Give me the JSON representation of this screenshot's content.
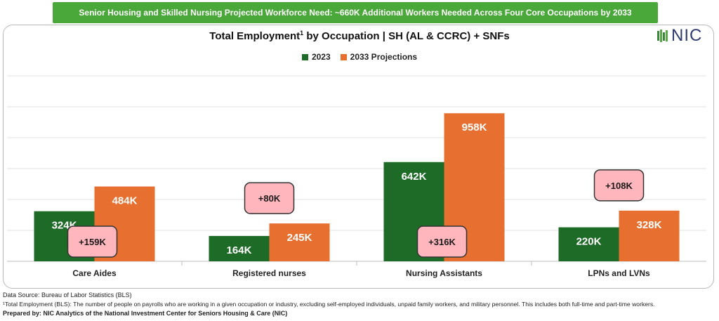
{
  "banner": "Senior Housing and Skilled Nursing Projected Workforce Need:  ~660K Additional Workers Needed Across Four Core Occupations by 2033",
  "logo_text": "NIC",
  "colors": {
    "series_2023": "#1e6b27",
    "series_2033": "#e76f30",
    "bubble_fill": "#ffb6bd",
    "bubble_border": "#333333",
    "banner": "#4aa83a"
  },
  "chart_data": {
    "type": "bar",
    "title_main": "Total Employment",
    "title_sup": "1",
    "title_rest": " by Occupation | SH (AL & CCRC) + SNFs",
    "categories": [
      "Care Aides",
      "Registered nurses",
      "Nursing Assistants",
      "LPNs and LVNs"
    ],
    "series": [
      {
        "name": "2023",
        "values": [
          324,
          164,
          642,
          220
        ],
        "labels": [
          "324K",
          "164K",
          "642K",
          "220K"
        ]
      },
      {
        "name": "2033 Projections",
        "values": [
          484,
          245,
          958,
          328
        ],
        "labels": [
          "484K",
          "245K",
          "958K",
          "328K"
        ]
      }
    ],
    "annotations": [
      "+159K",
      "+80K",
      "+316K",
      "+108K"
    ],
    "ylim": [
      0,
      1200
    ],
    "grid": true,
    "legend": "top-center"
  },
  "footer": {
    "source": "Data Source: Bureau of Labor Statistics (BLS)",
    "note": "¹Total Employment (BLS): The number of people on payrolls who are working in a given occupation or industry, excluding self-employed individuals, unpaid family workers, and military personnel. This includes both full-time and part-time workers.",
    "prepared": "Prepared by: NIC Analytics of the National Investment Center for Seniors Housing & Care (NIC)"
  }
}
